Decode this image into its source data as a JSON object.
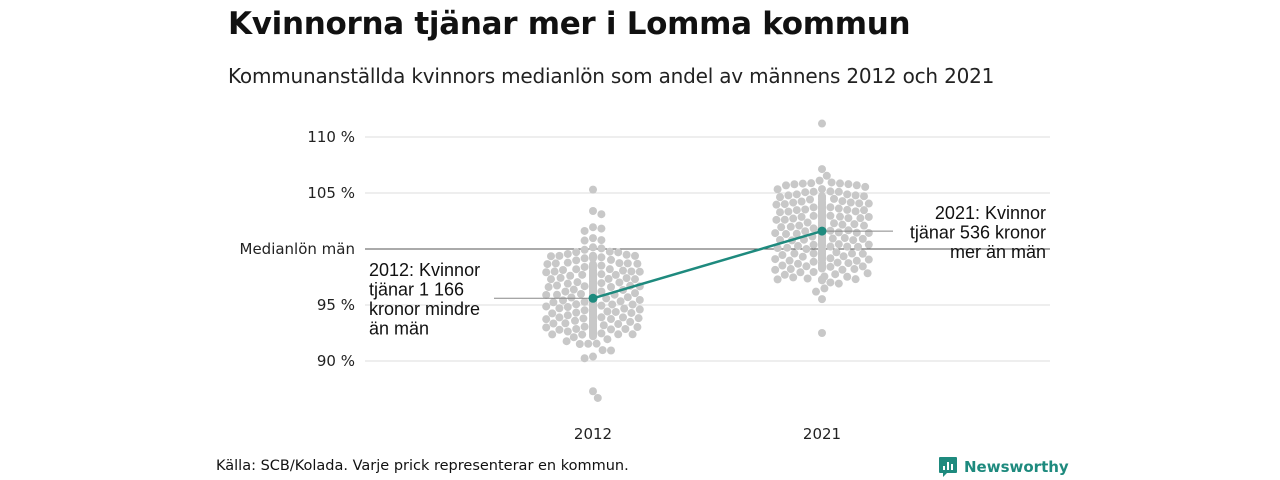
{
  "title": "Kvinnorna tjänar mer i Lomma kommun",
  "subtitle": "Kommunanställda kvinnors medianlön som andel av männens 2012 och 2021",
  "source": "Källa: SCB/Kolada. Varje prick representerar en kommun.",
  "brand": {
    "name": "Newsworthy",
    "icon": "newsworthy-logo-icon",
    "color": "#1e8a7e"
  },
  "chart_data": {
    "type": "scatter",
    "subtype": "beeswarm",
    "title": "Kvinnorna tjänar mer i Lomma kommun",
    "subtitle": "Kommunanställda kvinnors medianlön som andel av männens 2012 och 2021",
    "categories": [
      "2012",
      "2021"
    ],
    "ylim": [
      86,
      111.5
    ],
    "y_ticks": [
      {
        "value": 110,
        "label": "110 %"
      },
      {
        "value": 105,
        "label": "105 %"
      },
      {
        "value": 100,
        "label": "Medianlön män"
      },
      {
        "value": 95,
        "label": "95 %"
      },
      {
        "value": 90,
        "label": "90 %"
      }
    ],
    "grid": true,
    "reference_line": {
      "value": 100,
      "label": "Medianlön män"
    },
    "swarm": {
      "color": "#c8c8c8",
      "points_per_category": 290,
      "distribution": [
        {
          "category": "2012",
          "center": 96.0,
          "spread": 2.4,
          "min": 86.7,
          "max": 105.3
        },
        {
          "category": "2021",
          "center": 101.5,
          "spread": 2.2,
          "min": 92.5,
          "max": 111.2
        }
      ]
    },
    "highlight": {
      "name": "Lomma",
      "color": "#1e8a7e",
      "points": [
        {
          "x": "2012",
          "y": 95.6,
          "annotation": [
            "2012: Kvinnor",
            "tjänar 1 166",
            "kronor mindre",
            "än män"
          ]
        },
        {
          "x": "2021",
          "y": 101.6,
          "annotation": [
            "2021: Kvinnor",
            "tjänar 536 kronor",
            "mer än män"
          ]
        }
      ]
    }
  }
}
